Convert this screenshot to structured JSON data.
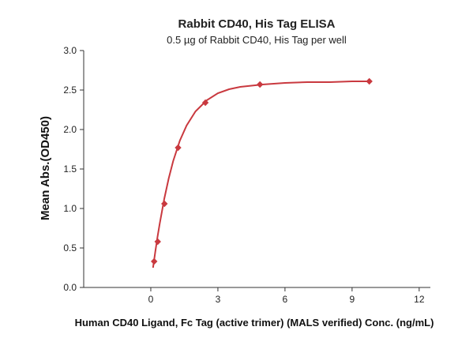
{
  "chart_data": {
    "type": "scatter",
    "title": "Rabbit CD40, His Tag ELISA",
    "subtitle": "0.5 µg of Rabbit CD40, His Tag per well",
    "xlabel": "Human CD40 Ligand, Fc Tag (active trimer) (MALS verified) Conc. (ng/mL)",
    "ylabel": "Mean Abs.(OD450)",
    "xlim": [
      -3,
      12.5
    ],
    "ylim": [
      0,
      3.0
    ],
    "xticks": [
      0,
      3,
      6,
      9,
      12
    ],
    "yticks": [
      0.0,
      0.5,
      1.0,
      1.5,
      2.0,
      2.5,
      3.0
    ],
    "xtick_labels": [
      "0",
      "3",
      "6",
      "9",
      "12"
    ],
    "ytick_labels": [
      "0.0",
      "0.5",
      "1.0",
      "1.5",
      "2.0",
      "2.5",
      "3.0"
    ],
    "grid": false,
    "marker_color": "#c9393f",
    "line_color": "#c9393f",
    "series": [
      {
        "x": [
          0.15,
          0.31,
          0.61,
          1.22,
          2.44,
          4.88,
          9.77
        ],
        "y": [
          0.33,
          0.58,
          1.06,
          1.77,
          2.34,
          2.57,
          2.61
        ]
      }
    ],
    "fit_curve": {
      "x": [
        0.1,
        0.2,
        0.3,
        0.4,
        0.6,
        0.8,
        1.0,
        1.3,
        1.6,
        2.0,
        2.5,
        3.0,
        3.5,
        4.0,
        5.0,
        6.0,
        7.0,
        8.0,
        9.0,
        9.77
      ],
      "y": [
        0.25,
        0.45,
        0.64,
        0.81,
        1.12,
        1.38,
        1.6,
        1.86,
        2.05,
        2.23,
        2.37,
        2.46,
        2.51,
        2.54,
        2.57,
        2.59,
        2.6,
        2.6,
        2.61,
        2.61
      ]
    }
  }
}
